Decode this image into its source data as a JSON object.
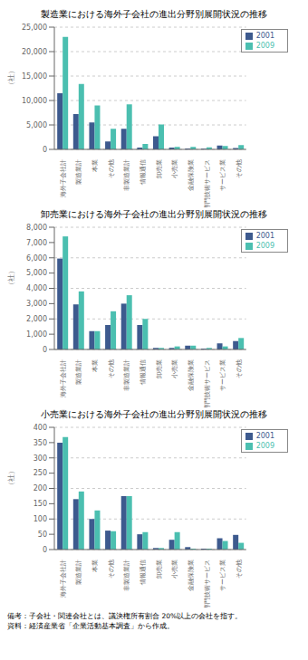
{
  "chart_data": [
    {
      "type": "bar",
      "title": "製造業における海外子会社の進出分野別展開状況の推移",
      "ylabel": "（社）",
      "categories": [
        "海外子会社計",
        "製造業計",
        "本業",
        "その他",
        "非製造業計",
        "情報通信",
        "卸売業",
        "小売業",
        "金融保険業",
        "専門技術サービス",
        "サービス業",
        "その他"
      ],
      "series": [
        {
          "name": "2001",
          "color": "#3d5a8e",
          "values": [
            11500,
            7200,
            5500,
            1600,
            4200,
            350,
            2700,
            350,
            200,
            150,
            800,
            300
          ]
        },
        {
          "name": "2009",
          "color": "#4bbfb0",
          "values": [
            23000,
            13400,
            9000,
            4200,
            9200,
            1100,
            5100,
            500,
            500,
            400,
            700,
            900
          ]
        }
      ],
      "ylim": [
        0,
        25000
      ],
      "yticks": [
        0,
        {
          "value": 5000,
          "label": "5,000"
        },
        {
          "value": 10000,
          "label": "10,000"
        },
        {
          "value": 15000,
          "label": "15,000"
        },
        {
          "value": 20000,
          "label": "20,000"
        },
        {
          "value": 25000,
          "label": "25,000"
        }
      ],
      "grid": true,
      "legend": "upper right"
    },
    {
      "type": "bar",
      "title": "卸売業における海外子会社の進出分野別展開状況の推移",
      "ylabel": "（社）",
      "categories": [
        "海外子会社計",
        "製造業計",
        "本業",
        "その他",
        "非製造業計",
        "情報通信",
        "卸売業",
        "小売業",
        "金融保険業",
        "専門技術サービス",
        "サービス業",
        "その他"
      ],
      "series": [
        {
          "name": "2001",
          "color": "#3d5a8e",
          "values": [
            5950,
            2950,
            1200,
            1600,
            3000,
            1600,
            100,
            100,
            250,
            50,
            400,
            550
          ]
        },
        {
          "name": "2009",
          "color": "#4bbfb0",
          "values": [
            7400,
            3800,
            1200,
            2500,
            3550,
            2000,
            100,
            200,
            250,
            100,
            200,
            750
          ]
        }
      ],
      "ylim": [
        0,
        8000
      ],
      "yticks": [
        0,
        {
          "value": 1000,
          "label": "1,000"
        },
        {
          "value": 2000,
          "label": "2,000"
        },
        {
          "value": 3000,
          "label": "3,000"
        },
        {
          "value": 4000,
          "label": "4,000"
        },
        {
          "value": 5000,
          "label": "5,000"
        },
        {
          "value": 6000,
          "label": "6,000"
        },
        {
          "value": 7000,
          "label": "7,000"
        },
        {
          "value": 8000,
          "label": "8,000"
        }
      ],
      "grid": true,
      "legend": "upper right"
    },
    {
      "type": "bar",
      "title": "小売業における海外子会社の進出分野別展開状況の推移",
      "ylabel": "（社）",
      "categories": [
        "海外子会社計",
        "製造業計",
        "本業",
        "その他",
        "非製造業計",
        "情報通信",
        "卸売業",
        "小売業",
        "金融保険業",
        "専門技術サービス",
        "サービス業",
        "その他"
      ],
      "series": [
        {
          "name": "2001",
          "color": "#3d5a8e",
          "values": [
            350,
            165,
            100,
            62,
            175,
            50,
            5,
            32,
            8,
            3,
            37,
            48
          ]
        },
        {
          "name": "2009",
          "color": "#4bbfb0",
          "values": [
            368,
            190,
            128,
            60,
            175,
            57,
            5,
            57,
            3,
            3,
            28,
            22
          ]
        }
      ],
      "ylim": [
        0,
        400
      ],
      "yticks": [
        0,
        50,
        100,
        150,
        200,
        250,
        300,
        350,
        400
      ],
      "grid": true,
      "legend": "upper right",
      "annotations": [
        "備考：子会社・関連会社とは、議決権所有割合 20%以上の会社を指す。",
        "資料：経済産業省「企業活動基本調査」から作成。"
      ]
    }
  ]
}
